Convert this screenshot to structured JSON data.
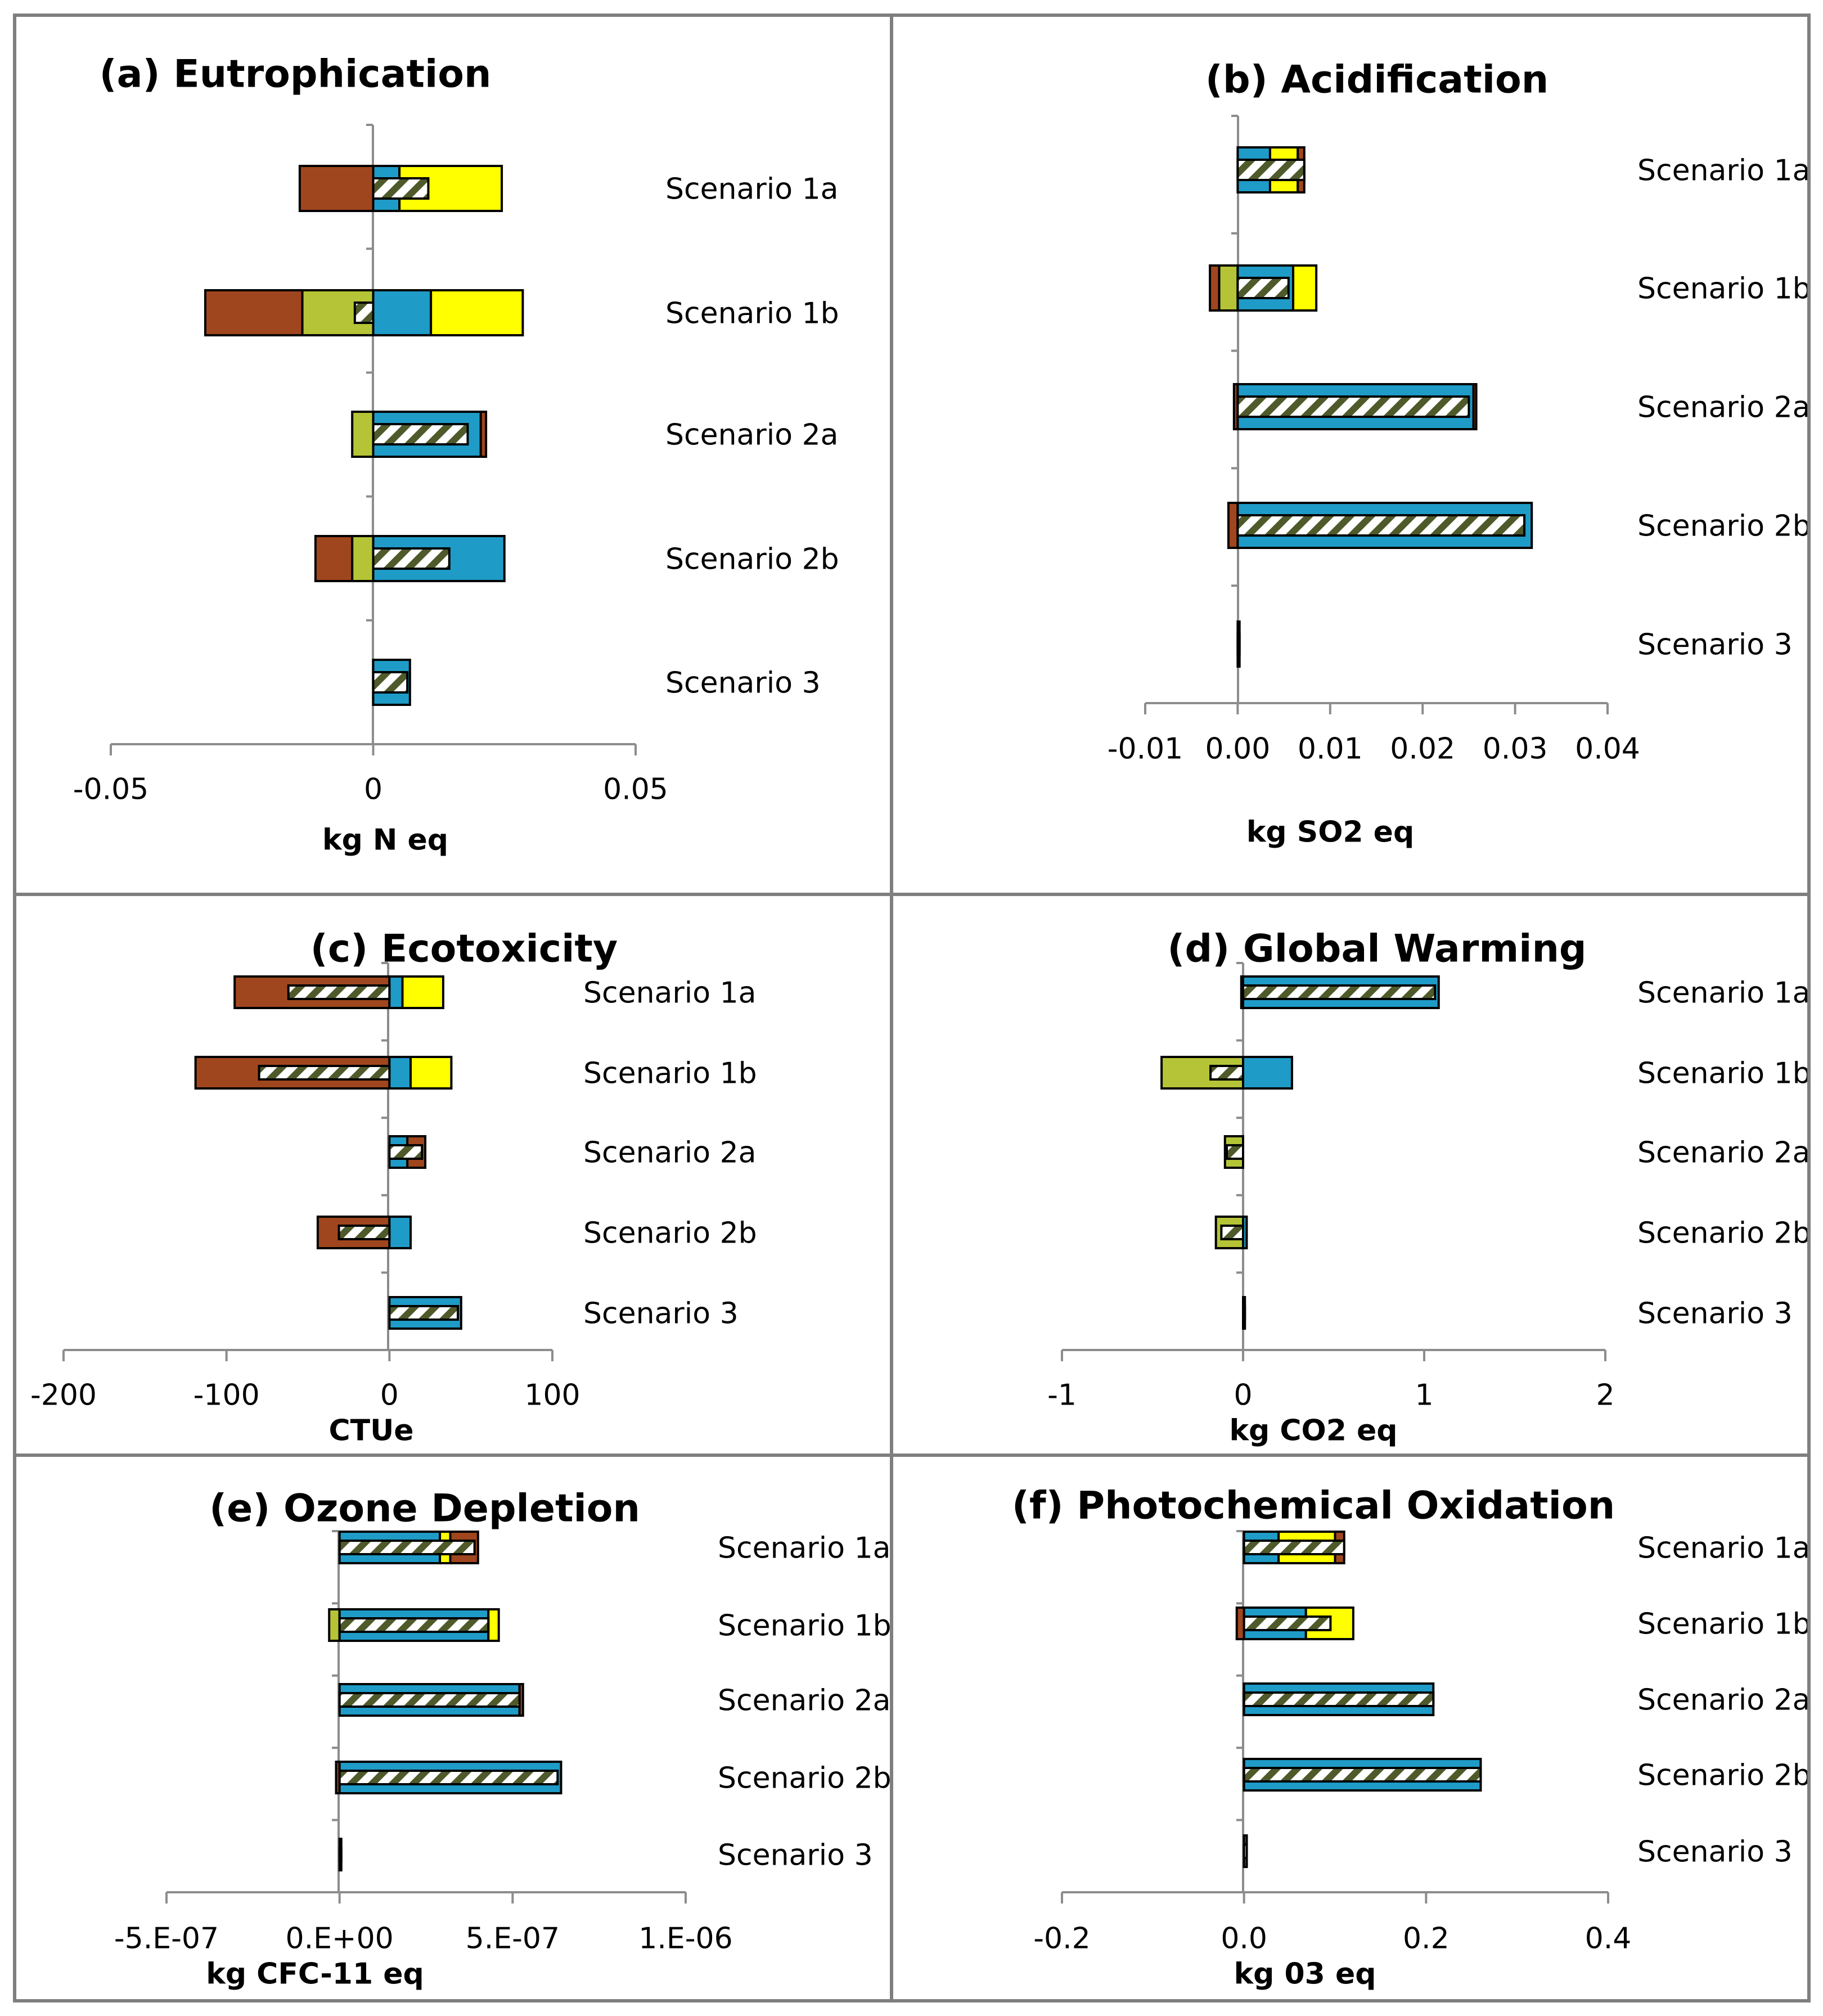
{
  "colors": {
    "brown": "#A0461E",
    "olive": "#B5C436",
    "blue": "#1F9BC7",
    "yellow": "#FFFF00",
    "hatch": "#4E5A2A",
    "axis": "#8C8C8C",
    "frame": "#7F7F7F"
  },
  "chart_data": [
    {
      "type": "bar",
      "title": "(a) Eutrophication",
      "xlabel": "kg N eq",
      "xlim": [
        -0.05,
        0.05
      ],
      "ticks": [
        "-0.05",
        "0",
        "0.05"
      ],
      "tick_values": [
        -0.05,
        0,
        0.05
      ],
      "categories": [
        "Scenario 1a",
        "Scenario 1b",
        "Scenario 2a",
        "Scenario 2b",
        "Scenario 3"
      ],
      "segments": [
        [
          {
            "c": "brown",
            "from": -0.014,
            "to": 0
          },
          {
            "c": "blue",
            "from": 0,
            "to": 0.005
          },
          {
            "c": "yellow",
            "from": 0.005,
            "to": 0.0245
          }
        ],
        [
          {
            "c": "brown",
            "from": -0.032,
            "to": -0.0135
          },
          {
            "c": "olive",
            "from": -0.0135,
            "to": 0
          },
          {
            "c": "blue",
            "from": 0,
            "to": 0.011
          },
          {
            "c": "yellow",
            "from": 0.011,
            "to": 0.0285
          }
        ],
        [
          {
            "c": "olive",
            "from": -0.004,
            "to": 0
          },
          {
            "c": "blue",
            "from": 0,
            "to": 0.0205
          },
          {
            "c": "brown",
            "from": 0.0205,
            "to": 0.0215
          }
        ],
        [
          {
            "c": "brown",
            "from": -0.011,
            "to": -0.004
          },
          {
            "c": "olive",
            "from": -0.004,
            "to": 0
          },
          {
            "c": "blue",
            "from": 0,
            "to": 0.025
          }
        ],
        [
          {
            "c": "blue",
            "from": 0,
            "to": 0.007
          }
        ]
      ],
      "net": [
        0.0105,
        -0.0035,
        0.018,
        0.0145,
        0.0065
      ]
    },
    {
      "type": "bar",
      "title": "(b) Acidification",
      "xlabel": "kg SO2 eq",
      "xlim": [
        -0.01,
        0.04
      ],
      "ticks": [
        "-0.01",
        "0.00",
        "0.01",
        "0.02",
        "0.03",
        "0.04"
      ],
      "tick_values": [
        -0.01,
        0,
        0.01,
        0.02,
        0.03,
        0.04
      ],
      "categories": [
        "Scenario 1a",
        "Scenario 1b",
        "Scenario 2a",
        "Scenario 2b",
        "Scenario 3"
      ],
      "segments": [
        [
          {
            "c": "blue",
            "from": 0,
            "to": 0.0035
          },
          {
            "c": "yellow",
            "from": 0.0035,
            "to": 0.0065
          },
          {
            "c": "brown",
            "from": 0.0065,
            "to": 0.0072
          }
        ],
        [
          {
            "c": "brown",
            "from": -0.003,
            "to": -0.002
          },
          {
            "c": "olive",
            "from": -0.002,
            "to": 0
          },
          {
            "c": "blue",
            "from": 0,
            "to": 0.006
          },
          {
            "c": "yellow",
            "from": 0.006,
            "to": 0.0085
          }
        ],
        [
          {
            "c": "brown",
            "from": -0.0004,
            "to": 0
          },
          {
            "c": "blue",
            "from": 0,
            "to": 0.0255
          },
          {
            "c": "brown",
            "from": 0.0255,
            "to": 0.0258
          }
        ],
        [
          {
            "c": "brown",
            "from": -0.001,
            "to": 0
          },
          {
            "c": "blue",
            "from": 0,
            "to": 0.0318
          }
        ],
        [
          {
            "c": "blue",
            "from": 0,
            "to": 0.0002
          }
        ]
      ],
      "net": [
        0.0072,
        0.0055,
        0.025,
        0.031,
        0.0002
      ]
    },
    {
      "type": "bar",
      "title": "(c) Ecotoxicity",
      "xlabel": "CTUe",
      "xlim": [
        -200,
        100
      ],
      "ticks": [
        "-200",
        "-100",
        "0",
        "100"
      ],
      "tick_values": [
        -200,
        -100,
        0,
        100
      ],
      "categories": [
        "Scenario 1a",
        "Scenario 1b",
        "Scenario 2a",
        "Scenario 2b",
        "Scenario 3"
      ],
      "segments": [
        [
          {
            "c": "brown",
            "from": -95,
            "to": 0
          },
          {
            "c": "blue",
            "from": 0,
            "to": 8
          },
          {
            "c": "yellow",
            "from": 8,
            "to": 33
          }
        ],
        [
          {
            "c": "brown",
            "from": -119,
            "to": 0
          },
          {
            "c": "blue",
            "from": 0,
            "to": 13
          },
          {
            "c": "yellow",
            "from": 13,
            "to": 38
          }
        ],
        [
          {
            "c": "blue",
            "from": 0,
            "to": 11
          },
          {
            "c": "brown",
            "from": 11,
            "to": 22
          }
        ],
        [
          {
            "c": "brown",
            "from": -44,
            "to": 0
          },
          {
            "c": "blue",
            "from": 0,
            "to": 13
          }
        ],
        [
          {
            "c": "blue",
            "from": 0,
            "to": 44
          }
        ]
      ],
      "net": [
        -62,
        -80,
        20,
        -31,
        42
      ]
    },
    {
      "type": "bar",
      "title": "(d) Global Warming",
      "xlabel": "kg CO2 eq",
      "xlim": [
        -1,
        2
      ],
      "ticks": [
        "-1",
        "0",
        "1",
        "2"
      ],
      "tick_values": [
        -1,
        0,
        1,
        2
      ],
      "categories": [
        "Scenario 1a",
        "Scenario 1b",
        "Scenario 2a",
        "Scenario 2b",
        "Scenario 3"
      ],
      "segments": [
        [
          {
            "c": "brown",
            "from": -0.01,
            "to": 0
          },
          {
            "c": "blue",
            "from": 0,
            "to": 1.08
          }
        ],
        [
          {
            "c": "olive",
            "from": -0.45,
            "to": 0
          },
          {
            "c": "blue",
            "from": 0,
            "to": 0.27
          }
        ],
        [
          {
            "c": "olive",
            "from": -0.1,
            "to": 0
          }
        ],
        [
          {
            "c": "olive",
            "from": -0.15,
            "to": 0
          },
          {
            "c": "blue",
            "from": 0,
            "to": 0.02
          }
        ],
        [
          {
            "c": "blue",
            "from": 0,
            "to": 0.01
          }
        ]
      ],
      "net": [
        1.06,
        -0.18,
        -0.09,
        -0.12,
        0.01
      ]
    },
    {
      "type": "bar",
      "title": "(e) Ozone Depletion",
      "xlabel": "kg CFC-11 eq",
      "xlim": [
        -5e-07,
        1e-06
      ],
      "ticks": [
        "-5.E-07",
        "0.E+00",
        "5.E-07",
        "1.E-06"
      ],
      "tick_values": [
        -5e-07,
        0,
        5e-07,
        1e-06
      ],
      "categories": [
        "Scenario 1a",
        "Scenario 1b",
        "Scenario 2a",
        "Scenario 2b",
        "Scenario 3"
      ],
      "segments": [
        [
          {
            "c": "blue",
            "from": 0,
            "to": 2.9e-07
          },
          {
            "c": "yellow",
            "from": 2.9e-07,
            "to": 3.2e-07
          },
          {
            "c": "brown",
            "from": 3.2e-07,
            "to": 4e-07
          }
        ],
        [
          {
            "c": "olive",
            "from": -3e-08,
            "to": 0
          },
          {
            "c": "blue",
            "from": 0,
            "to": 4.3e-07
          },
          {
            "c": "yellow",
            "from": 4.3e-07,
            "to": 4.6e-07
          }
        ],
        [
          {
            "c": "blue",
            "from": 0,
            "to": 5.2e-07
          },
          {
            "c": "brown",
            "from": 5.2e-07,
            "to": 5.3e-07
          }
        ],
        [
          {
            "c": "brown",
            "from": -1e-08,
            "to": 0
          },
          {
            "c": "blue",
            "from": 0,
            "to": 6.4e-07
          }
        ],
        [
          {
            "c": "blue",
            "from": 0,
            "to": 5e-09
          }
        ]
      ],
      "net": [
        3.9e-07,
        4.3e-07,
        5.2e-07,
        6.3e-07,
        5e-09
      ]
    },
    {
      "type": "bar",
      "title": "(f) Photochemical Oxidation",
      "xlabel": "kg 03 eq",
      "xlim": [
        -0.2,
        0.4
      ],
      "ticks": [
        "-0.2",
        "0.0",
        "0.2",
        "0.4"
      ],
      "tick_values": [
        -0.2,
        0,
        0.2,
        0.4
      ],
      "categories": [
        "Scenario 1a",
        "Scenario 1b",
        "Scenario 2a",
        "Scenario 2b",
        "Scenario 3"
      ],
      "segments": [
        [
          {
            "c": "blue",
            "from": 0,
            "to": 0.038
          },
          {
            "c": "yellow",
            "from": 0.038,
            "to": 0.1
          },
          {
            "c": "brown",
            "from": 0.1,
            "to": 0.11
          }
        ],
        [
          {
            "c": "brown",
            "from": -0.008,
            "to": 0
          },
          {
            "c": "blue",
            "from": 0,
            "to": 0.068
          },
          {
            "c": "yellow",
            "from": 0.068,
            "to": 0.12
          }
        ],
        [
          {
            "c": "blue",
            "from": 0,
            "to": 0.208
          }
        ],
        [
          {
            "c": "blue",
            "from": 0,
            "to": 0.26
          }
        ],
        [
          {
            "c": "blue",
            "from": 0,
            "to": 0.003
          }
        ]
      ],
      "net": [
        0.11,
        0.095,
        0.208,
        0.26,
        0.003
      ]
    }
  ]
}
